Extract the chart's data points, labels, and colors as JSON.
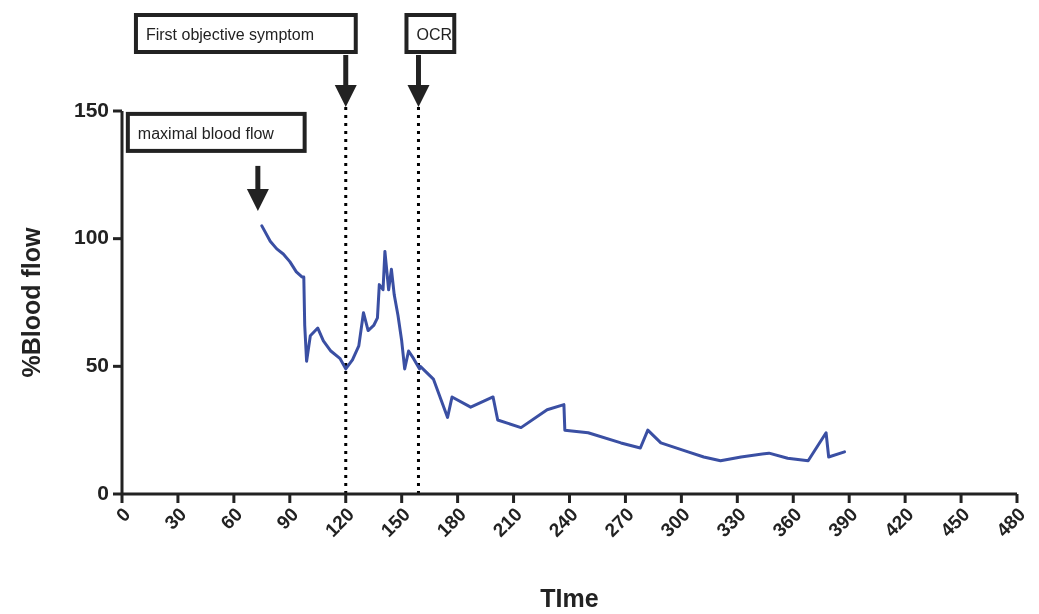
{
  "chart_data": {
    "type": "line",
    "xlabel": "TIme",
    "ylabel": "%Blood flow",
    "xlim": [
      0,
      480
    ],
    "xticks": [
      0,
      30,
      60,
      90,
      120,
      150,
      180,
      210,
      240,
      270,
      300,
      330,
      360,
      390,
      420,
      450,
      480
    ],
    "ylim": [
      0,
      150
    ],
    "yticks": [
      0,
      50,
      100,
      150
    ],
    "grid": false,
    "line_style": "solid",
    "series": [
      {
        "color": "#3a4fa3",
        "x": [
          75,
          79.5,
          83,
          86.5,
          90,
          93.5,
          96.5,
          97.5,
          98,
          99,
          101,
          105,
          108,
          112,
          117,
          120,
          123.6,
          127,
          129.5,
          132,
          135,
          137,
          138,
          140,
          141,
          143,
          144.5,
          146,
          148,
          150,
          151.6,
          153.7,
          156.4,
          159.6,
          160,
          167,
          174.6,
          177,
          187,
          199,
          201.5,
          214,
          228,
          237,
          237.5,
          250,
          267.6,
          278,
          282,
          289,
          303.6,
          312,
          321,
          332,
          347,
          357,
          368,
          377.6,
          379,
          387.5
        ],
        "values": [
          105,
          99,
          96,
          94,
          91,
          87,
          85,
          85,
          66,
          52,
          62,
          65,
          60,
          56,
          53,
          49,
          52.5,
          58,
          71,
          64,
          66,
          69,
          82,
          80,
          95,
          80,
          88,
          78,
          70,
          60,
          49,
          56,
          53,
          49,
          50,
          45,
          30,
          38,
          34,
          38,
          29,
          26,
          33,
          35,
          25,
          24,
          20,
          18,
          25,
          20,
          16.5,
          14.5,
          13,
          14.5,
          16,
          14,
          13,
          24,
          14.5,
          16.5
        ]
      }
    ],
    "ref_lines": [
      {
        "axis": "x",
        "value": 120,
        "line_style": "dotted",
        "color": "#000000"
      },
      {
        "axis": "x",
        "value": 159,
        "line_style": "dotted",
        "color": "#000000"
      }
    ],
    "annotations": [
      "maximal blood flow",
      "First objective symptom",
      "OCR"
    ]
  }
}
